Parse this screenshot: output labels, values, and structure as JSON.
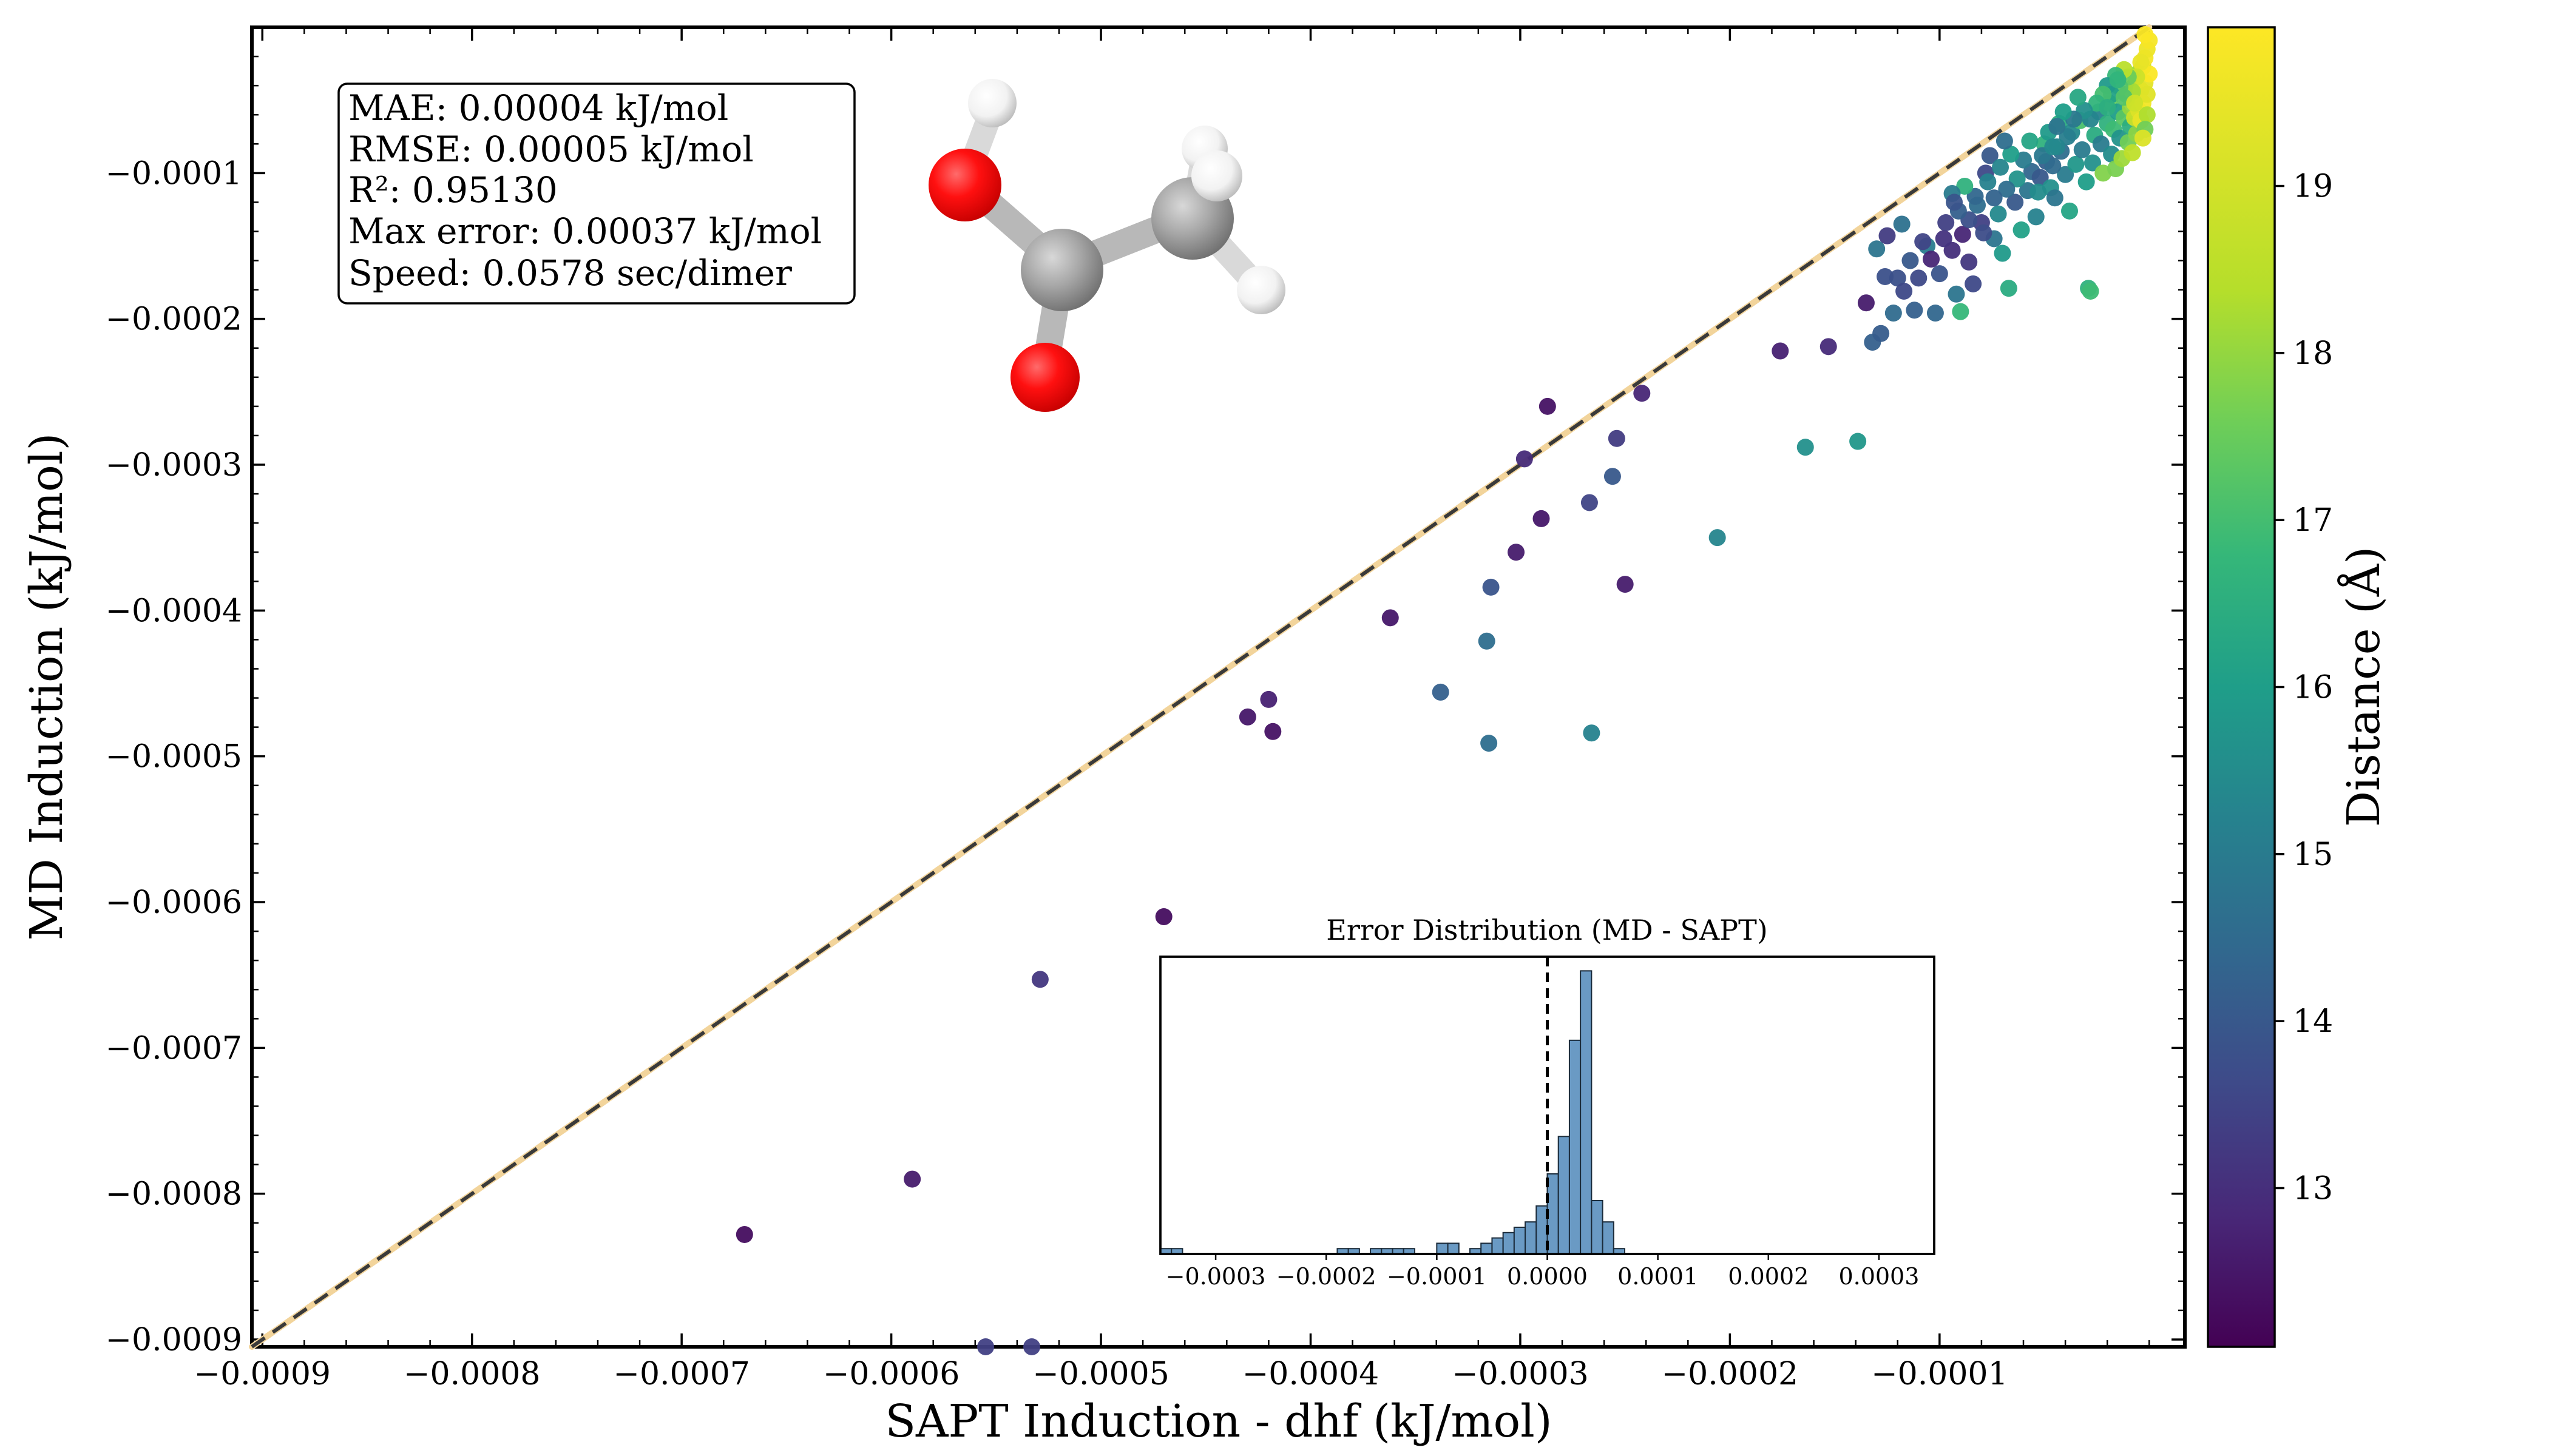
{
  "chart_data": {
    "type": "scatter",
    "title": "",
    "xlabel": "SAPT Induction - dhf (kJ/mol)",
    "ylabel": "MD Induction (kJ/mol)",
    "xlim": [
      -0.0009,
      -0.0
    ],
    "ylim": [
      -0.0009,
      -0.0
    ],
    "x_ticks": [
      -0.0009,
      -0.0008,
      -0.0007,
      -0.0006,
      -0.0005,
      -0.0004,
      -0.0003,
      -0.0002,
      -0.0001
    ],
    "y_ticks": [
      -0.0009,
      -0.0008,
      -0.0007,
      -0.0006,
      -0.0005,
      -0.0004,
      -0.0003,
      -0.0002,
      -0.0001
    ],
    "x_tick_labels": [
      "−0.0009",
      "−0.0008",
      "−0.0007",
      "−0.0006",
      "−0.0005",
      "−0.0004",
      "−0.0003",
      "−0.0002",
      "−0.0001"
    ],
    "y_tick_labels": [
      "−0.0009",
      "−0.0008",
      "−0.0007",
      "−0.0006",
      "−0.0005",
      "−0.0004",
      "−0.0003",
      "−0.0002",
      "−0.0001"
    ],
    "reference_line": "y = x (dashed)",
    "colorbar": {
      "label": "Distance (Å)",
      "range": [
        12.05,
        19.95
      ],
      "ticks": [
        13,
        14,
        15,
        16,
        17,
        18,
        19
      ],
      "colormap": "viridis"
    },
    "stats": {
      "mae": "MAE: 0.00004 kJ/mol",
      "rmse": "RMSE: 0.00005 kJ/mol",
      "r2": "R²: 0.95130",
      "max_error": "Max error: 0.00037 kJ/mol",
      "speed": "Speed: 0.0578 sec/dimer"
    },
    "points": [
      {
        "x": -0.00067,
        "y": -0.000828,
        "d": 12.3
      },
      {
        "x": -0.00059,
        "y": -0.00079,
        "d": 12.6
      },
      {
        "x": -0.000529,
        "y": -0.000653,
        "d": 13.2
      },
      {
        "x": -0.00047,
        "y": -0.00061,
        "d": 12.3
      },
      {
        "x": -0.000555,
        "y": -0.000905,
        "d": 13.4
      },
      {
        "x": -0.000533,
        "y": -0.000905,
        "d": 13.4
      },
      {
        "x": -0.00043,
        "y": -0.000473,
        "d": 12.5
      },
      {
        "x": -0.00042,
        "y": -0.000461,
        "d": 12.7
      },
      {
        "x": -0.000418,
        "y": -0.000483,
        "d": 12.4
      },
      {
        "x": -0.000362,
        "y": -0.000405,
        "d": 12.5
      },
      {
        "x": -0.000338,
        "y": -0.000456,
        "d": 14.2
      },
      {
        "x": -0.000315,
        "y": -0.000491,
        "d": 14.6
      },
      {
        "x": -0.000316,
        "y": -0.000421,
        "d": 14.6
      },
      {
        "x": -0.000314,
        "y": -0.000384,
        "d": 13.9
      },
      {
        "x": -0.000266,
        "y": -0.000484,
        "d": 15.2
      },
      {
        "x": -0.000302,
        "y": -0.00036,
        "d": 12.6
      },
      {
        "x": -0.00029,
        "y": -0.000337,
        "d": 12.5
      },
      {
        "x": -0.000287,
        "y": -0.00026,
        "d": 12.4
      },
      {
        "x": -0.000298,
        "y": -0.000296,
        "d": 12.9
      },
      {
        "x": -0.000267,
        "y": -0.000326,
        "d": 13.5
      },
      {
        "x": -0.000256,
        "y": -0.000308,
        "d": 14.0
      },
      {
        "x": -0.00025,
        "y": -0.000382,
        "d": 12.6
      },
      {
        "x": -0.000254,
        "y": -0.000282,
        "d": 13.3
      },
      {
        "x": -0.000242,
        "y": -0.000251,
        "d": 12.8
      },
      {
        "x": -0.000206,
        "y": -0.00035,
        "d": 15.3
      },
      {
        "x": -0.000164,
        "y": -0.000288,
        "d": 15.6
      },
      {
        "x": -0.000139,
        "y": -0.000284,
        "d": 15.8
      },
      {
        "x": -0.000176,
        "y": -0.000222,
        "d": 12.7
      },
      {
        "x": -0.000153,
        "y": -0.000219,
        "d": 12.9
      },
      {
        "x": -0.000132,
        "y": -0.000216,
        "d": 14.2
      },
      {
        "x": -0.000135,
        "y": -0.000189,
        "d": 12.6
      },
      {
        "x": -0.00013,
        "y": -0.000152,
        "d": 14.8
      },
      {
        "x": -0.00012,
        "y": -0.000172,
        "d": 13.8
      },
      {
        "x": -0.000112,
        "y": -0.000194,
        "d": 14.2
      },
      {
        "x": -0.00011,
        "y": -0.000172,
        "d": 13.6
      },
      {
        "x": -0.000106,
        "y": -0.00015,
        "d": 15.0
      },
      {
        "x": -0.000102,
        "y": -0.000196,
        "d": 14.4
      },
      {
        "x": -9.7e-05,
        "y": -0.000134,
        "d": 13.4
      },
      {
        "x": -9.4e-05,
        "y": -0.000153,
        "d": 13.0
      },
      {
        "x": -9.2e-05,
        "y": -0.000183,
        "d": 14.8
      },
      {
        "x": -9e-05,
        "y": -0.000195,
        "d": 16.8
      },
      {
        "x": -8.9e-05,
        "y": -0.000142,
        "d": 12.8
      },
      {
        "x": -8.6e-05,
        "y": -0.000161,
        "d": 13.2
      },
      {
        "x": -8.4e-05,
        "y": -0.000176,
        "d": 13.6
      },
      {
        "x": -8.2e-05,
        "y": -0.000122,
        "d": 14.6
      },
      {
        "x": -8e-05,
        "y": -0.000134,
        "d": 13.4
      },
      {
        "x": -7.8e-05,
        "y": -0.0001,
        "d": 13.6
      },
      {
        "x": -7.6e-05,
        "y": -8.8e-05,
        "d": 14.0
      },
      {
        "x": -7.4e-05,
        "y": -0.000145,
        "d": 14.8
      },
      {
        "x": -7.2e-05,
        "y": -0.000128,
        "d": 15.4
      },
      {
        "x": -7e-05,
        "y": -0.000155,
        "d": 15.9
      },
      {
        "x": -6.7e-05,
        "y": -0.000179,
        "d": 16.4
      },
      {
        "x": -6.4e-05,
        "y": -0.00012,
        "d": 14.0
      },
      {
        "x": -6.1e-05,
        "y": -0.000139,
        "d": 16.1
      },
      {
        "x": -5.8e-05,
        "y": -0.000112,
        "d": 14.8
      },
      {
        "x": -5.6e-05,
        "y": -9.9e-05,
        "d": 14.4
      },
      {
        "x": -5.4e-05,
        "y": -0.00013,
        "d": 15.2
      },
      {
        "x": -5.2e-05,
        "y": -0.000103,
        "d": 14.0
      },
      {
        "x": -5e-05,
        "y": -8e-05,
        "d": 16.6
      },
      {
        "x": -4.9e-05,
        "y": -9.2e-05,
        "d": 14.2
      },
      {
        "x": -4.7e-05,
        "y": -0.00011,
        "d": 15.6
      },
      {
        "x": -4.5e-05,
        "y": -0.000117,
        "d": 14.8
      },
      {
        "x": -4.3e-05,
        "y": -6.6e-05,
        "d": 16.5
      },
      {
        "x": -4.2e-05,
        "y": -8.5e-05,
        "d": 14.6
      },
      {
        "x": -4e-05,
        "y": -0.000101,
        "d": 15.0
      },
      {
        "x": -3.8e-05,
        "y": -0.000126,
        "d": 16.2
      },
      {
        "x": -3.7e-05,
        "y": -7.2e-05,
        "d": 15.4
      },
      {
        "x": -3.5e-05,
        "y": -9.4e-05,
        "d": 15.8
      },
      {
        "x": -3.3e-05,
        "y": -6.4e-05,
        "d": 17.1
      },
      {
        "x": -3.2e-05,
        "y": -8.4e-05,
        "d": 15.0
      },
      {
        "x": -3e-05,
        "y": -0.000106,
        "d": 16.0
      },
      {
        "x": -2.9e-05,
        "y": -0.000179,
        "d": 16.6
      },
      {
        "x": -2.8e-05,
        "y": -0.000181,
        "d": 16.9
      },
      {
        "x": -2.7e-05,
        "y": -9.3e-05,
        "d": 15.6
      },
      {
        "x": -2.6e-05,
        "y": -7.4e-05,
        "d": 16.4
      },
      {
        "x": -2.4e-05,
        "y": -5.8e-05,
        "d": 15.2
      },
      {
        "x": -2.3e-05,
        "y": -8e-05,
        "d": 15.0
      },
      {
        "x": -2.2e-05,
        "y": -0.0001,
        "d": 17.8
      },
      {
        "x": -2e-05,
        "y": -6.6e-05,
        "d": 16.6
      },
      {
        "x": -1.9e-05,
        "y": -5.2e-05,
        "d": 17.4
      },
      {
        "x": -1.8e-05,
        "y": -8.7e-05,
        "d": 15.5
      },
      {
        "x": -1.7e-05,
        "y": -7e-05,
        "d": 16.9
      },
      {
        "x": -1.6e-05,
        "y": -9.7e-05,
        "d": 17.7
      },
      {
        "x": -1.5e-05,
        "y": -5.8e-05,
        "d": 16.0
      },
      {
        "x": -1.4e-05,
        "y": -7.6e-05,
        "d": 15.7
      },
      {
        "x": -1.3e-05,
        "y": -9e-05,
        "d": 18.1
      },
      {
        "x": -1.2e-05,
        "y": -6.2e-05,
        "d": 17.3
      },
      {
        "x": -1.1e-05,
        "y": -4.6e-05,
        "d": 16.2
      },
      {
        "x": -1e-05,
        "y": -7.9e-05,
        "d": 17.6
      },
      {
        "x": -9e-06,
        "y": -6.8e-05,
        "d": 16.5
      },
      {
        "x": -9e-06,
        "y": -5.5e-05,
        "d": 18.0
      },
      {
        "x": -8e-06,
        "y": -8.6e-05,
        "d": 18.6
      },
      {
        "x": -7e-06,
        "y": -4e-05,
        "d": 17.0
      },
      {
        "x": -7e-06,
        "y": -6.2e-05,
        "d": 18.8
      },
      {
        "x": -6e-06,
        "y": -7.3e-05,
        "d": 17.9
      },
      {
        "x": -6e-06,
        "y": -4.9e-05,
        "d": 18.4
      },
      {
        "x": -5e-06,
        "y": -5.7e-05,
        "d": 19.2
      },
      {
        "x": -5e-06,
        "y": -3.1e-05,
        "d": 18.1
      },
      {
        "x": -4e-06,
        "y": -6.4e-05,
        "d": 19.5
      },
      {
        "x": -4e-06,
        "y": -4.3e-05,
        "d": 19.0
      },
      {
        "x": -3e-06,
        "y": -5.2e-05,
        "d": 19.7
      },
      {
        "x": -3e-06,
        "y": -2.7e-05,
        "d": 18.7
      },
      {
        "x": -2e-06,
        "y": -3.8e-05,
        "d": 19.4
      },
      {
        "x": -2e-06,
        "y": -2.1e-05,
        "d": 19.8
      },
      {
        "x": -1e-06,
        "y": -4.6e-05,
        "d": 19.3
      },
      {
        "x": -1e-06,
        "y": -1.5e-05,
        "d": 19.6
      },
      {
        "x": -0.0,
        "y": -3.2e-05,
        "d": 19.9
      },
      {
        "x": -0.0,
        "y": -9e-06,
        "d": 19.8
      },
      {
        "x": -1e-06,
        "y": -6e-05,
        "d": 18.3
      },
      {
        "x": -2e-06,
        "y": -7e-05,
        "d": 17.6
      },
      {
        "x": -3e-06,
        "y": -7.6e-05,
        "d": 19.2
      },
      {
        "x": -4e-06,
        "y": -2.4e-05,
        "d": 19.5
      },
      {
        "x": -6e-06,
        "y": -3.4e-05,
        "d": 18.9
      },
      {
        "x": -8e-06,
        "y": -4.4e-05,
        "d": 18.2
      },
      {
        "x": -1e-05,
        "y": -3.4e-05,
        "d": 17.5
      },
      {
        "x": -1.2e-05,
        "y": -2.9e-05,
        "d": 18.5
      },
      {
        "x": -1.4e-05,
        "y": -4.1e-05,
        "d": 17.2
      },
      {
        "x": -1.6e-05,
        "y": -3.3e-05,
        "d": 16.8
      },
      {
        "x": -1.8e-05,
        "y": -4.6e-05,
        "d": 16.1
      },
      {
        "x": -2e-05,
        "y": -4e-05,
        "d": 15.9
      },
      {
        "x": -2.2e-05,
        "y": -4.6e-05,
        "d": 17.0
      },
      {
        "x": -2.5e-05,
        "y": -5.2e-05,
        "d": 16.7
      },
      {
        "x": -2.8e-05,
        "y": -6.3e-05,
        "d": 15.3
      },
      {
        "x": -3.1e-05,
        "y": -5.7e-05,
        "d": 15.6
      },
      {
        "x": -3.4e-05,
        "y": -4.8e-05,
        "d": 16.3
      },
      {
        "x": -3.6e-05,
        "y": -6.3e-05,
        "d": 14.9
      },
      {
        "x": -3.9e-05,
        "y": -7.5e-05,
        "d": 15.1
      },
      {
        "x": -4.1e-05,
        "y": -5.8e-05,
        "d": 16.0
      },
      {
        "x": -4.4e-05,
        "y": -8.2e-05,
        "d": 15.3
      },
      {
        "x": -4.6e-05,
        "y": -9.5e-05,
        "d": 14.5
      },
      {
        "x": -4.8e-05,
        "y": -7.2e-05,
        "d": 15.9
      },
      {
        "x": -5.1e-05,
        "y": -8.8e-05,
        "d": 14.9
      },
      {
        "x": -5.3e-05,
        "y": -0.000113,
        "d": 15.5
      },
      {
        "x": -5.7e-05,
        "y": -7.8e-05,
        "d": 16.2
      },
      {
        "x": -6e-05,
        "y": -9.1e-05,
        "d": 15.0
      },
      {
        "x": -6.3e-05,
        "y": -0.000104,
        "d": 15.7
      },
      {
        "x": -6.6e-05,
        "y": -8.7e-05,
        "d": 16.0
      },
      {
        "x": -6.8e-05,
        "y": -0.000111,
        "d": 14.6
      },
      {
        "x": -7.1e-05,
        "y": -9.6e-05,
        "d": 15.3
      },
      {
        "x": -7.4e-05,
        "y": -0.000117,
        "d": 14.3
      },
      {
        "x": -7.7e-05,
        "y": -0.000106,
        "d": 15.2
      },
      {
        "x": -7.9e-05,
        "y": -0.000141,
        "d": 13.7
      },
      {
        "x": -8.3e-05,
        "y": -0.000116,
        "d": 14.4
      },
      {
        "x": -8.6e-05,
        "y": -0.000132,
        "d": 13.8
      },
      {
        "x": -8.8e-05,
        "y": -0.000109,
        "d": 16.6
      },
      {
        "x": -9.1e-05,
        "y": -0.000126,
        "d": 14.2
      },
      {
        "x": -9.4e-05,
        "y": -0.000114,
        "d": 15.0
      },
      {
        "x": -9.8e-05,
        "y": -0.000145,
        "d": 13.1
      },
      {
        "x": -0.0001,
        "y": -0.000169,
        "d": 13.9
      },
      {
        "x": -0.000104,
        "y": -0.000159,
        "d": 12.8
      },
      {
        "x": -0.000108,
        "y": -0.000147,
        "d": 13.5
      },
      {
        "x": -0.000114,
        "y": -0.00016,
        "d": 14.0
      },
      {
        "x": -0.000117,
        "y": -0.000181,
        "d": 13.6
      },
      {
        "x": -0.000122,
        "y": -0.000196,
        "d": 14.5
      },
      {
        "x": -0.000126,
        "y": -0.000171,
        "d": 13.8
      },
      {
        "x": -0.000128,
        "y": -0.00021,
        "d": 14.1
      },
      {
        "x": -0.000118,
        "y": -0.000135,
        "d": 14.7
      },
      {
        "x": -0.000125,
        "y": -0.000143,
        "d": 13.3
      },
      {
        "x": -9.3e-05,
        "y": -0.00012,
        "d": 13.9
      },
      {
        "x": -6.9e-05,
        "y": -7.8e-05,
        "d": 14.6
      },
      {
        "x": -4.6e-05,
        "y": -8.2e-05,
        "d": 15.4
      },
      {
        "x": -4.4e-05,
        "y": -6.8e-05,
        "d": 14.8
      },
      {
        "x": -2e-05,
        "y": -5.5e-05,
        "d": 16.5
      },
      {
        "x": -1.5e-05,
        "y": -3.6e-05,
        "d": 16.7
      },
      {
        "x": -1.2e-05,
        "y": -4.8e-05,
        "d": 17.2
      },
      {
        "x": -7e-06,
        "y": -5.2e-05,
        "d": 18.9
      },
      {
        "x": -2e-06,
        "y": -5e-06,
        "d": 19.9
      }
    ],
    "inset": {
      "type": "histogram",
      "title": "Error Distribution (MD - SAPT)",
      "xlim": [
        -0.00035,
        0.00035
      ],
      "x_ticks": [
        -0.0003,
        -0.0002,
        -0.0001,
        0.0,
        0.0001,
        0.0002,
        0.0003
      ],
      "x_tick_labels": [
        "−0.0003",
        "−0.0002",
        "−0.0001",
        "0.0000",
        "0.0001",
        "0.0002",
        "0.0003"
      ],
      "zero_line": 0.0,
      "bin_width": 1e-05,
      "bin_starts": [
        -0.00035,
        -0.00034,
        -0.00019,
        -0.00018,
        -0.00016,
        -0.00015,
        -0.00014,
        -0.00013,
        -0.0001,
        -9e-05,
        -7e-05,
        -6e-05,
        -5e-05,
        -4e-05,
        -3e-05,
        -2e-05,
        -1e-05,
        0.0,
        1e-05,
        2e-05,
        3e-05,
        4e-05,
        5e-05,
        6e-05
      ],
      "counts": [
        1,
        1,
        1,
        1,
        1,
        1,
        1,
        1,
        2,
        2,
        1,
        2,
        3,
        4,
        5,
        6,
        9,
        15,
        22,
        40,
        53,
        10,
        6,
        1
      ]
    }
  }
}
